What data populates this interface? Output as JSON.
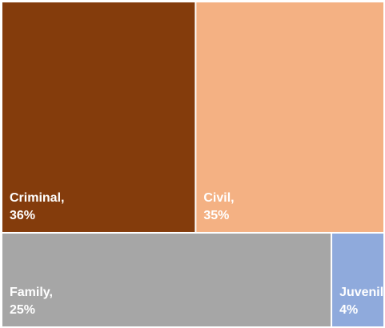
{
  "chart_data": {
    "type": "treemap",
    "categories": [
      "Criminal,",
      "Civil,",
      "Family,",
      "Juvenile,"
    ],
    "values": [
      36,
      35,
      25,
      4
    ],
    "value_labels": [
      "36%",
      "35%",
      "25%",
      "4%"
    ],
    "colors": [
      "#843c0c",
      "#f4b183",
      "#a6a6a6",
      "#8faadc"
    ]
  }
}
